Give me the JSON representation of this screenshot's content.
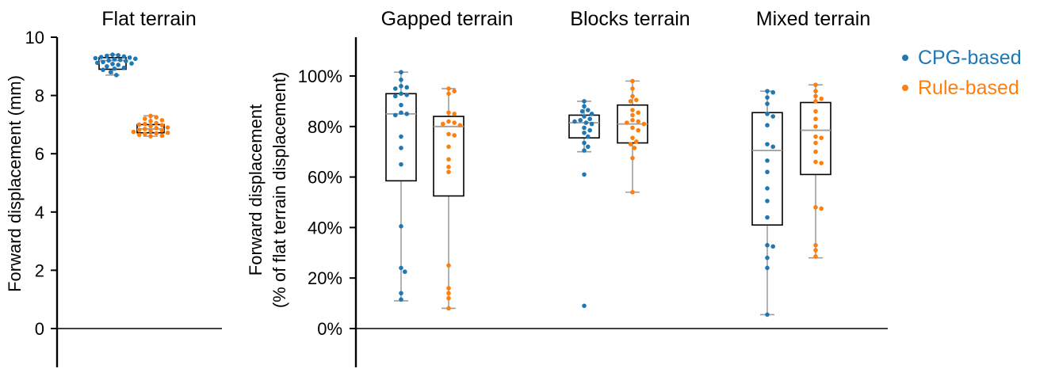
{
  "colors": {
    "cpg": "#1f77b4",
    "rule": "#ff7f0e",
    "median": "#9e9e9e",
    "whisker": "#9e9e9e"
  },
  "legend": [
    {
      "label": "CPG-based",
      "color": "#1f77b4"
    },
    {
      "label": "Rule-based",
      "color": "#ff7f0e"
    }
  ],
  "chart_data": [
    {
      "type": "box-swarm",
      "title": "Flat terrain",
      "ylabel": "Forward displacement (mm)",
      "ylim": [
        -1.3,
        10
      ],
      "yticks": [
        0,
        2,
        4,
        6,
        8,
        10
      ],
      "ytick_labels": [
        "0",
        "2",
        "4",
        "6",
        "8",
        "10"
      ],
      "series": [
        {
          "group": "cpg",
          "box": {
            "min": 8.7,
            "q1": 8.9,
            "median": 9.2,
            "q3": 9.3,
            "max": 9.4
          },
          "points": [
            9.4,
            9.38,
            9.36,
            9.34,
            9.32,
            9.3,
            9.28,
            9.26,
            9.24,
            9.22,
            9.2,
            9.18,
            9.15,
            9.12,
            9.1,
            9.08,
            9.05,
            9.0,
            8.95,
            8.92,
            8.88,
            8.8,
            8.7
          ]
        },
        {
          "group": "rule",
          "box": {
            "min": 6.6,
            "q1": 6.72,
            "median": 6.85,
            "q3": 7.0,
            "max": 7.3
          },
          "points": [
            7.3,
            7.25,
            7.2,
            7.15,
            7.12,
            7.05,
            7.02,
            7.0,
            6.98,
            6.95,
            6.9,
            6.88,
            6.85,
            6.82,
            6.8,
            6.78,
            6.75,
            6.72,
            6.7,
            6.68,
            6.65,
            6.62,
            6.6
          ]
        }
      ]
    },
    {
      "type": "box-swarm",
      "ylabel": [
        "Forward displacement",
        "(% of flat terrain displacement)"
      ],
      "ylim": [
        -15,
        115
      ],
      "yticks": [
        0,
        20,
        40,
        60,
        80,
        100
      ],
      "ytick_labels": [
        "0%",
        "20%",
        "40%",
        "60%",
        "80%",
        "100%"
      ],
      "panels": [
        {
          "title": "Gapped terrain",
          "series": [
            {
              "group": "cpg",
              "box": {
                "min": 11,
                "q1": 58.5,
                "median": 85,
                "q3": 93,
                "max": 101.5
              },
              "points": [
                101.5,
                98.5,
                96,
                95.5,
                95,
                93,
                92.5,
                92,
                88.5,
                85.5,
                85,
                84.5,
                76,
                71.5,
                65,
                40.5,
                24,
                22.5,
                14,
                11.5
              ]
            },
            {
              "group": "rule",
              "box": {
                "min": 8,
                "q1": 52.5,
                "median": 80,
                "q3": 84,
                "max": 95
              },
              "points": [
                95,
                94,
                93,
                85.5,
                85,
                82,
                81.5,
                81,
                80.5,
                77,
                76.5,
                72,
                67,
                64,
                62,
                25,
                16,
                14,
                12,
                8
              ]
            }
          ]
        },
        {
          "title": "Blocks terrain",
          "series": [
            {
              "group": "cpg",
              "box": {
                "min": 70,
                "q1": 75.5,
                "median": 81.5,
                "q3": 84.5,
                "max": 90
              },
              "points": [
                90,
                88,
                86.5,
                86,
                85,
                84,
                83,
                82.5,
                82,
                81.5,
                81,
                79.5,
                78.5,
                77.5,
                76,
                73.5,
                72,
                70.5,
                61,
                9
              ]
            },
            {
              "group": "rule",
              "box": {
                "min": 54,
                "q1": 73.5,
                "median": 81,
                "q3": 88.5,
                "max": 98
              },
              "points": [
                98,
                95,
                92,
                90.5,
                90,
                86.5,
                85.5,
                84.5,
                82.5,
                82,
                81.5,
                81,
                79.5,
                78.5,
                75.5,
                74,
                73,
                71.5,
                67.5,
                54
              ]
            }
          ]
        },
        {
          "title": "Mixed terrain",
          "series": [
            {
              "group": "cpg",
              "box": {
                "min": 5.5,
                "q1": 41,
                "median": 70.5,
                "q3": 85.5,
                "max": 94
              },
              "points": [
                94,
                93.5,
                91.5,
                89,
                85,
                84,
                80.5,
                73,
                72,
                66.5,
                62,
                55.5,
                50.5,
                44,
                33,
                32.5,
                28,
                24,
                5.5
              ]
            },
            {
              "group": "rule",
              "box": {
                "min": 28,
                "q1": 61,
                "median": 78.5,
                "q3": 89.5,
                "max": 96.5
              },
              "points": [
                96.5,
                94,
                92,
                91,
                90,
                86,
                83,
                80,
                76,
                75.5,
                73.5,
                70,
                66,
                65.5,
                48,
                47.5,
                33,
                31,
                28.5
              ]
            }
          ]
        }
      ]
    }
  ]
}
